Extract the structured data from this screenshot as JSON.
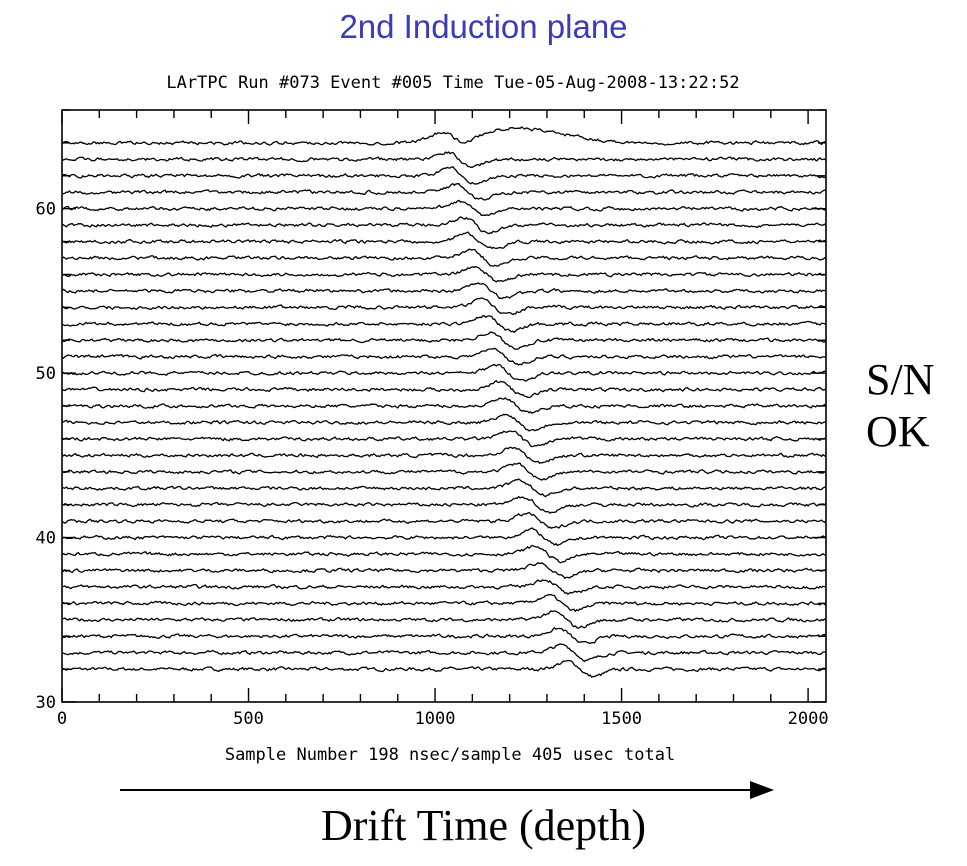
{
  "slide_title": "2nd Induction plane",
  "side_note": [
    "S/N",
    "OK"
  ],
  "caption": "Drift Time (depth)",
  "chart_data": {
    "type": "line",
    "title": "LArTPC   Run #073  Event #005  Time Tue-05-Aug-2008-13:22:52",
    "xlabel": "Sample Number  198 nsec/sample  405 usec total",
    "ylabel": "",
    "xlim": [
      0,
      2048
    ],
    "ylim": [
      30,
      66
    ],
    "x_ticks": [
      "0",
      "500",
      "1000",
      "1500",
      "2000"
    ],
    "y_ticks": [
      "30",
      "40",
      "50",
      "60"
    ],
    "grid": false,
    "series_description": "waveforms for channels 32-64, each offset at its channel number; signal peak drifts from ~1050 (ch 64) to ~1390 (ch 32)",
    "channels": [
      32,
      33,
      34,
      35,
      36,
      37,
      38,
      39,
      40,
      41,
      42,
      43,
      44,
      45,
      46,
      47,
      48,
      49,
      50,
      51,
      52,
      53,
      54,
      55,
      56,
      57,
      58,
      59,
      60,
      61,
      62,
      63,
      64
    ],
    "peak_sample": [
      1390,
      1375,
      1365,
      1352,
      1340,
      1328,
      1315,
      1303,
      1292,
      1282,
      1272,
      1262,
      1253,
      1244,
      1235,
      1226,
      1217,
      1208,
      1199,
      1190,
      1180,
      1170,
      1160,
      1150,
      1140,
      1130,
      1120,
      1110,
      1100,
      1090,
      1075,
      1065,
      1050
    ],
    "colors": {
      "title": "#3b3bb8",
      "trace": "#000000"
    }
  }
}
